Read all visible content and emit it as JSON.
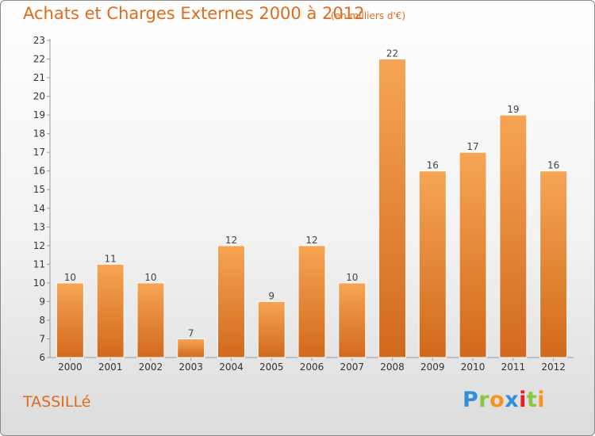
{
  "header": {
    "title": "Achats et Charges Externes 2000 à 2012",
    "subtitle": "(en milliers d'€)"
  },
  "footer": {
    "place": "TASSILLé",
    "logo_letters": [
      "P",
      "r",
      "o",
      "x",
      "i",
      "t",
      "i"
    ],
    "logo_colors": [
      "#2f8fd8",
      "#8cc63f",
      "#f7941d",
      "#2f8fd8",
      "#ed1c24",
      "#8cc63f",
      "#f7941d"
    ]
  },
  "chart_data": {
    "type": "bar",
    "title": "Achats et Charges Externes 2000 à 2012",
    "subtitle": "(en milliers d'€)",
    "categories": [
      "2000",
      "2001",
      "2002",
      "2003",
      "2004",
      "2005",
      "2006",
      "2007",
      "2008",
      "2009",
      "2010",
      "2011",
      "2012"
    ],
    "values": [
      10,
      11,
      10,
      7,
      12,
      9,
      12,
      10,
      22,
      16,
      17,
      19,
      16
    ],
    "ylim": [
      6,
      23
    ],
    "yticks": [
      6,
      7,
      8,
      9,
      10,
      11,
      12,
      13,
      14,
      15,
      16,
      17,
      18,
      19,
      20,
      21,
      22,
      23
    ],
    "grid": false,
    "bar_color_top": "#f6a554",
    "bar_color_bottom": "#d2691c"
  }
}
